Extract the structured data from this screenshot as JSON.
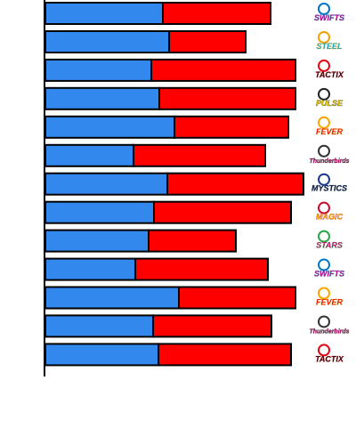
{
  "chart_data": {
    "type": "bar",
    "orientation": "horizontal",
    "stacked": true,
    "grid": false,
    "legend": "none",
    "xlim": [
      0,
      290
    ],
    "categories": [
      "Swifts",
      "Steel",
      "Tactix",
      "Pulse",
      "Fever",
      "Thunderbirds",
      "Mystics",
      "Magic",
      "Stars",
      "Swifts",
      "Fever",
      "Thunderbirds",
      "Tactix"
    ],
    "series": [
      {
        "color": "#3388ee",
        "values": [
          132,
          139,
          119,
          128,
          145,
          99,
          137,
          122,
          116,
          101,
          150,
          121,
          127
        ]
      },
      {
        "color": "#ff0000",
        "values": [
          121,
          86,
          162,
          153,
          128,
          148,
          153,
          154,
          98,
          149,
          131,
          133,
          149
        ]
      }
    ]
  },
  "logos": [
    {
      "icon": "swifts-logo",
      "text": "SWIFTS",
      "color": "#e4007c",
      "accent": "#0077c8"
    },
    {
      "icon": "steel-logo",
      "text": "STEEL",
      "color": "#00a9e0",
      "accent": "#f0a000"
    },
    {
      "icon": "tactix-logo",
      "text": "TACTIX",
      "color": "#111111",
      "accent": "#e30613"
    },
    {
      "icon": "pulse-logo",
      "text": "PULSE",
      "color": "#f5d000",
      "accent": "#222222"
    },
    {
      "icon": "fever-logo",
      "text": "FEVER",
      "color": "#e30613",
      "accent": "#f7a600"
    },
    {
      "icon": "thunderbirds-logo",
      "text": "Thunderbirds",
      "color": "#e4007c",
      "accent": "#333333"
    },
    {
      "icon": "mystics-logo",
      "text": "MYSTICS",
      "color": "#222222",
      "accent": "#1a3c8f"
    },
    {
      "icon": "magic-logo",
      "text": "MAGIC",
      "color": "#f5d000",
      "accent": "#c8102e"
    },
    {
      "icon": "stars-logo",
      "text": "STARS",
      "color": "#e4007c",
      "accent": "#2aa84a"
    },
    {
      "icon": "swifts-logo",
      "text": "SWIFTS",
      "color": "#e4007c",
      "accent": "#0077c8"
    },
    {
      "icon": "fever-logo",
      "text": "FEVER",
      "color": "#e30613",
      "accent": "#f7a600"
    },
    {
      "icon": "thunderbirds-logo",
      "text": "Thunderbirds",
      "color": "#e4007c",
      "accent": "#333333"
    },
    {
      "icon": "tactix-logo",
      "text": "TACTIX",
      "color": "#111111",
      "accent": "#e30613"
    }
  ]
}
